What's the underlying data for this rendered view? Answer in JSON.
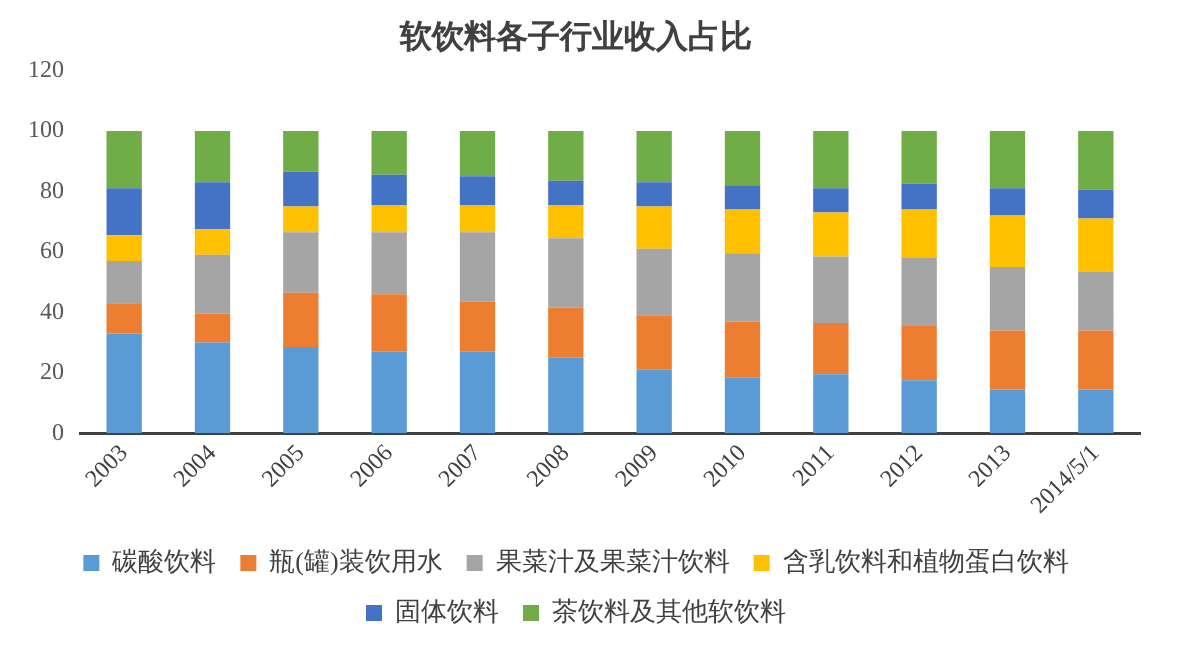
{
  "chart_data": {
    "type": "bar",
    "title": "软饮料各子行业收入占比",
    "stacked": true,
    "categories": [
      "2003",
      "2004",
      "2005",
      "2006",
      "2007",
      "2008",
      "2009",
      "2010",
      "2011",
      "2012",
      "2013",
      "2014/5/1"
    ],
    "series": [
      {
        "name": "碳酸饮料",
        "color": "#5b9bd5",
        "values": [
          33,
          30,
          28.5,
          27,
          27,
          25,
          21,
          18.5,
          19.5,
          17.5,
          14.5,
          14.5
        ]
      },
      {
        "name": "瓶(罐)装饮用水",
        "color": "#ed7d31",
        "values": [
          10,
          9.5,
          18,
          19,
          16.5,
          16.5,
          18,
          18.5,
          17,
          18,
          19.5,
          19.5
        ]
      },
      {
        "name": "果菜汁及果菜汁饮料",
        "color": "#a5a5a5",
        "values": [
          14,
          19.5,
          20,
          20.5,
          23,
          23,
          22,
          22.5,
          22,
          22.5,
          21,
          19.5
        ]
      },
      {
        "name": "含乳饮料和植物蛋白饮料",
        "color": "#ffc000",
        "values": [
          8.5,
          8.5,
          8.5,
          9,
          9,
          11,
          14,
          14.5,
          14.5,
          16,
          17,
          17.5
        ]
      },
      {
        "name": "固体饮料",
        "color": "#4472c4",
        "values": [
          15.5,
          15.5,
          11.5,
          10,
          9.5,
          8,
          8,
          8,
          8,
          8.5,
          9,
          9.5
        ]
      },
      {
        "name": "茶饮料及其他软饮料",
        "color": "#70ad47",
        "values": [
          19,
          17,
          13.5,
          14.5,
          15,
          16.5,
          17,
          18,
          19,
          17.5,
          19,
          19.5
        ]
      }
    ],
    "ylim": [
      0,
      120
    ],
    "yticks": [
      0,
      20,
      40,
      60,
      80,
      100,
      120
    ],
    "grid": false,
    "legend": "bottom"
  }
}
